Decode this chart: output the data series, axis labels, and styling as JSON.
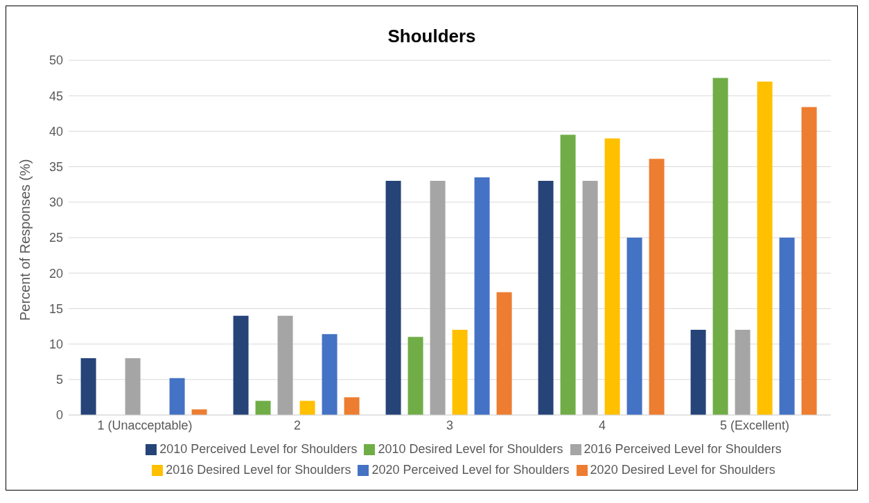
{
  "chart_data": {
    "type": "bar",
    "title": "Shoulders",
    "ylabel": "Percent of Responses (%)",
    "categories": [
      "1 (Unacceptable)",
      "2",
      "3",
      "4",
      "5 (Excellent)"
    ],
    "series": [
      {
        "name": "2010 Perceived Level for Shoulders",
        "color": "#264478",
        "values": [
          8,
          14,
          33,
          33,
          12
        ]
      },
      {
        "name": "2010 Desired Level for Shoulders",
        "color": "#70ad47",
        "values": [
          0,
          2,
          11,
          39.5,
          47.5
        ]
      },
      {
        "name": "2016 Perceived Level for Shoulders",
        "color": "#a5a5a5",
        "values": [
          8,
          14,
          33,
          33,
          12
        ]
      },
      {
        "name": "2016 Desired Level for Shoulders",
        "color": "#ffc000",
        "values": [
          0,
          2,
          12,
          39,
          47
        ]
      },
      {
        "name": "2020 Perceived Level for Shoulders",
        "color": "#4472c4",
        "values": [
          5.2,
          11.4,
          33.5,
          25,
          25
        ]
      },
      {
        "name": "2020 Desired Level for Shoulders",
        "color": "#ed7d31",
        "values": [
          0.8,
          2.5,
          17.3,
          36.1,
          43.4
        ]
      }
    ],
    "ylim": [
      0,
      50
    ],
    "yticks": [
      0,
      5,
      10,
      15,
      20,
      25,
      30,
      35,
      40,
      45,
      50
    ],
    "grid": "y",
    "legend": "bottom"
  }
}
